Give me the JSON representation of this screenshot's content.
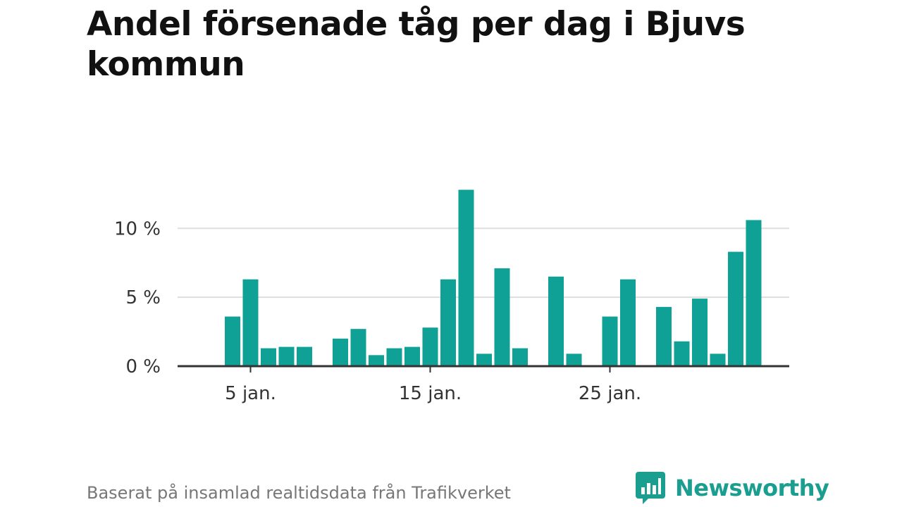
{
  "title": "Andel försenade tåg per dag i Bjuvs kommun",
  "source": "Baserat på insamlad realtidsdata från Trafikverket",
  "logo_text": "Newsworthy",
  "colors": {
    "bar": "#0fa196",
    "grid": "#dddddd",
    "axis": "#333333",
    "brand": "#1a9e8f"
  },
  "chart_data": {
    "type": "bar",
    "title": "Andel försenade tåg per dag i Bjuvs kommun",
    "xlabel": "",
    "ylabel": "",
    "x_unit": "day of January",
    "x": [
      1,
      2,
      3,
      4,
      5,
      6,
      7,
      8,
      9,
      10,
      11,
      12,
      13,
      14,
      15,
      16,
      17,
      18,
      19,
      20,
      21,
      22,
      23,
      24,
      25,
      26,
      27,
      28,
      29,
      30,
      31,
      32,
      33
    ],
    "values": [
      0,
      0,
      0,
      3.6,
      6.3,
      1.3,
      1.4,
      1.4,
      0,
      2.0,
      2.7,
      0.8,
      1.3,
      1.4,
      2.8,
      6.3,
      12.8,
      0.9,
      7.1,
      1.3,
      0,
      6.5,
      0.9,
      0,
      3.6,
      6.3,
      0,
      4.3,
      1.8,
      4.9,
      0.9,
      8.3,
      10.6
    ],
    "ylim": [
      0,
      14
    ],
    "y_ticks": [
      0,
      5,
      10
    ],
    "y_tick_labels": [
      "0 %",
      "5 %",
      "10 %"
    ],
    "x_ticks": [
      5,
      15,
      25
    ],
    "x_tick_labels": [
      "5 jan.",
      "15 jan.",
      "25 jan."
    ],
    "grid": true,
    "legend": "none"
  }
}
